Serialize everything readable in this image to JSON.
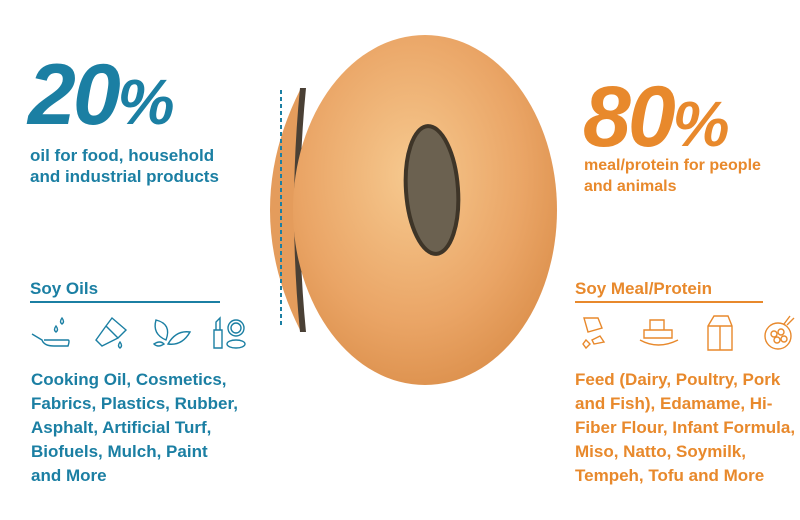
{
  "colors": {
    "oil": "#1b7fa3",
    "meal": "#e8892c",
    "bean": "#eaa566"
  },
  "left": {
    "percent": "20",
    "percent_sign": "%",
    "subtitle_1": "oil for food, household",
    "subtitle_2": "and industrial products",
    "heading": "Soy Oils",
    "icons": [
      "frying-pan-oil-icon",
      "paintbrush-icon",
      "leaves-icon",
      "cosmetics-icon"
    ],
    "list": [
      "Cooking Oil, Cosmetics,",
      "Fabrics, Plastics, Rubber,",
      "Asphalt, Artificial Turf,",
      "Biofuels, Mulch, Paint",
      "and More"
    ]
  },
  "right": {
    "percent": "80",
    "percent_sign": "%",
    "subtitle_1": "meal/protein for people",
    "subtitle_2": "and animals",
    "heading": "Soy Meal/Protein",
    "icons": [
      "feed-pieces-icon",
      "tofu-plate-icon",
      "milk-carton-icon",
      "soybean-bowl-icon"
    ],
    "list": [
      "Feed (Dairy, Poultry, Pork",
      "and Fish), Edamame, Hi-",
      "Fiber Flour, Infant Formula,",
      "Miso, Natto, Soymilk,",
      "Tempeh, Tofu and More"
    ]
  }
}
